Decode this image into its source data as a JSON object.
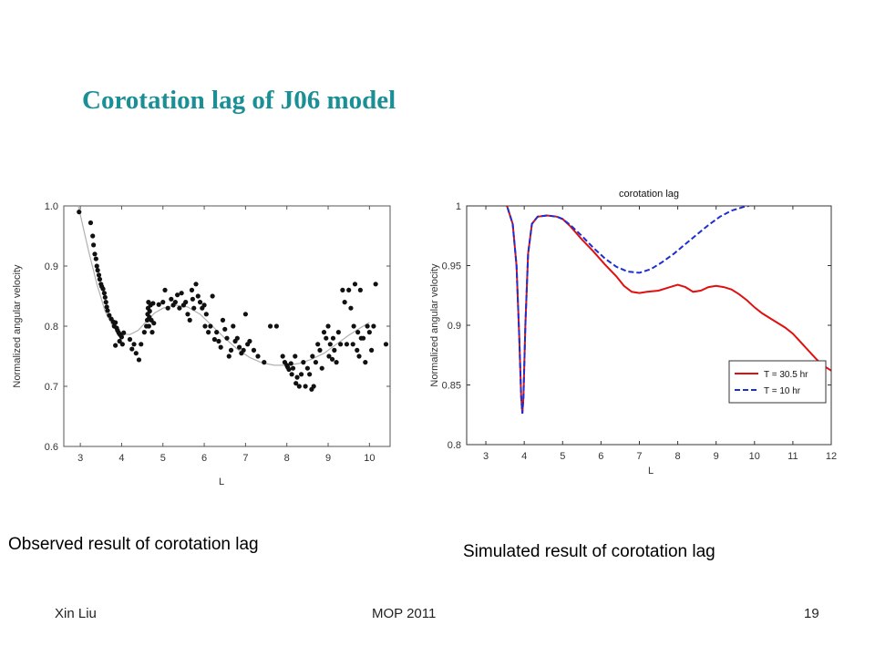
{
  "slide": {
    "title": "Corotation lag of J06 model",
    "caption_left": "Observed result of corotation lag",
    "caption_right": "Simulated result of corotation lag",
    "footer_left": "Xin Liu",
    "footer_center": "MOP 2011",
    "footer_right": "19",
    "title_color": "#1b8f96"
  },
  "chart_data": [
    {
      "type": "scatter",
      "title": "",
      "xlabel": "L",
      "ylabel": "Normalized angular velocity",
      "xlim": [
        2.6,
        10.5
      ],
      "ylim": [
        0.6,
        1.0
      ],
      "xticks": [
        3,
        4,
        5,
        6,
        7,
        8,
        9,
        10
      ],
      "yticks": [
        0.6,
        0.7,
        0.8,
        0.9,
        1.0
      ],
      "ytick_labels": [
        "0.6",
        "0.7",
        "0.8",
        "0.9",
        "1.0"
      ],
      "grid": false,
      "point_color": "#111111",
      "fit_color": "#b0b0b0",
      "points": [
        [
          2.97,
          0.99
        ],
        [
          3.25,
          0.972
        ],
        [
          3.3,
          0.95
        ],
        [
          3.32,
          0.935
        ],
        [
          3.35,
          0.92
        ],
        [
          3.38,
          0.912
        ],
        [
          3.4,
          0.9
        ],
        [
          3.42,
          0.893
        ],
        [
          3.45,
          0.885
        ],
        [
          3.47,
          0.878
        ],
        [
          3.5,
          0.87
        ],
        [
          3.52,
          0.866
        ],
        [
          3.55,
          0.862
        ],
        [
          3.58,
          0.855
        ],
        [
          3.6,
          0.848
        ],
        [
          3.62,
          0.84
        ],
        [
          3.64,
          0.832
        ],
        [
          3.66,
          0.826
        ],
        [
          3.7,
          0.818
        ],
        [
          3.75,
          0.812
        ],
        [
          3.8,
          0.807
        ],
        [
          3.82,
          0.8
        ],
        [
          3.85,
          0.806
        ],
        [
          3.88,
          0.797
        ],
        [
          3.9,
          0.793
        ],
        [
          3.93,
          0.789
        ],
        [
          3.96,
          0.786
        ],
        [
          4.0,
          0.782
        ],
        [
          4.05,
          0.789
        ],
        [
          3.85,
          0.768
        ],
        [
          3.95,
          0.775
        ],
        [
          4.02,
          0.77
        ],
        [
          4.2,
          0.778
        ],
        [
          4.25,
          0.762
        ],
        [
          4.3,
          0.77
        ],
        [
          4.35,
          0.755
        ],
        [
          4.42,
          0.744
        ],
        [
          4.47,
          0.77
        ],
        [
          4.55,
          0.79
        ],
        [
          4.6,
          0.8
        ],
        [
          4.62,
          0.81
        ],
        [
          4.63,
          0.82
        ],
        [
          4.64,
          0.83
        ],
        [
          4.65,
          0.84
        ],
        [
          4.66,
          0.8
        ],
        [
          4.67,
          0.815
        ],
        [
          4.68,
          0.825
        ],
        [
          4.7,
          0.835
        ],
        [
          4.72,
          0.81
        ],
        [
          4.74,
          0.79
        ],
        [
          4.76,
          0.838
        ],
        [
          4.78,
          0.805
        ],
        [
          4.9,
          0.836
        ],
        [
          5.0,
          0.84
        ],
        [
          5.05,
          0.86
        ],
        [
          5.12,
          0.83
        ],
        [
          5.2,
          0.845
        ],
        [
          5.25,
          0.835
        ],
        [
          5.3,
          0.84
        ],
        [
          5.35,
          0.852
        ],
        [
          5.4,
          0.83
        ],
        [
          5.45,
          0.855
        ],
        [
          5.5,
          0.835
        ],
        [
          5.55,
          0.84
        ],
        [
          5.6,
          0.82
        ],
        [
          5.65,
          0.81
        ],
        [
          5.7,
          0.86
        ],
        [
          5.72,
          0.845
        ],
        [
          5.75,
          0.83
        ],
        [
          5.8,
          0.87
        ],
        [
          5.85,
          0.85
        ],
        [
          5.9,
          0.84
        ],
        [
          5.95,
          0.83
        ],
        [
          6.0,
          0.835
        ],
        [
          6.02,
          0.8
        ],
        [
          6.05,
          0.82
        ],
        [
          6.1,
          0.79
        ],
        [
          6.15,
          0.8
        ],
        [
          6.2,
          0.85
        ],
        [
          6.25,
          0.778
        ],
        [
          6.3,
          0.79
        ],
        [
          6.35,
          0.775
        ],
        [
          6.4,
          0.765
        ],
        [
          6.45,
          0.81
        ],
        [
          6.5,
          0.795
        ],
        [
          6.55,
          0.78
        ],
        [
          6.6,
          0.75
        ],
        [
          6.65,
          0.76
        ],
        [
          6.7,
          0.8
        ],
        [
          6.75,
          0.775
        ],
        [
          6.8,
          0.78
        ],
        [
          6.85,
          0.765
        ],
        [
          6.9,
          0.755
        ],
        [
          6.95,
          0.76
        ],
        [
          7.0,
          0.82
        ],
        [
          7.05,
          0.77
        ],
        [
          7.1,
          0.775
        ],
        [
          7.2,
          0.76
        ],
        [
          7.3,
          0.75
        ],
        [
          7.45,
          0.74
        ],
        [
          7.6,
          0.8
        ],
        [
          7.75,
          0.8
        ],
        [
          7.9,
          0.75
        ],
        [
          7.95,
          0.74
        ],
        [
          8.0,
          0.735
        ],
        [
          8.02,
          0.732
        ],
        [
          8.05,
          0.728
        ],
        [
          8.1,
          0.738
        ],
        [
          8.12,
          0.72
        ],
        [
          8.15,
          0.73
        ],
        [
          8.2,
          0.75
        ],
        [
          8.22,
          0.705
        ],
        [
          8.25,
          0.715
        ],
        [
          8.3,
          0.7
        ],
        [
          8.35,
          0.72
        ],
        [
          8.4,
          0.74
        ],
        [
          8.45,
          0.7
        ],
        [
          8.5,
          0.73
        ],
        [
          8.55,
          0.72
        ],
        [
          8.6,
          0.695
        ],
        [
          8.62,
          0.75
        ],
        [
          8.65,
          0.7
        ],
        [
          8.7,
          0.74
        ],
        [
          8.75,
          0.77
        ],
        [
          8.8,
          0.76
        ],
        [
          8.85,
          0.73
        ],
        [
          8.9,
          0.79
        ],
        [
          8.95,
          0.78
        ],
        [
          9.0,
          0.8
        ],
        [
          9.02,
          0.75
        ],
        [
          9.05,
          0.77
        ],
        [
          9.1,
          0.745
        ],
        [
          9.12,
          0.78
        ],
        [
          9.15,
          0.76
        ],
        [
          9.2,
          0.74
        ],
        [
          9.25,
          0.79
        ],
        [
          9.3,
          0.77
        ],
        [
          9.35,
          0.86
        ],
        [
          9.4,
          0.84
        ],
        [
          9.45,
          0.77
        ],
        [
          9.5,
          0.86
        ],
        [
          9.55,
          0.83
        ],
        [
          9.6,
          0.77
        ],
        [
          9.62,
          0.8
        ],
        [
          9.65,
          0.87
        ],
        [
          9.7,
          0.76
        ],
        [
          9.72,
          0.79
        ],
        [
          9.75,
          0.75
        ],
        [
          9.78,
          0.86
        ],
        [
          9.8,
          0.78
        ],
        [
          9.85,
          0.78
        ],
        [
          9.9,
          0.74
        ],
        [
          9.95,
          0.8
        ],
        [
          10.0,
          0.79
        ],
        [
          10.05,
          0.76
        ],
        [
          10.1,
          0.8
        ],
        [
          10.15,
          0.87
        ],
        [
          10.4,
          0.77
        ]
      ],
      "fit_curve": [
        [
          2.95,
          1.0
        ],
        [
          3.05,
          0.97
        ],
        [
          3.2,
          0.925
        ],
        [
          3.4,
          0.87
        ],
        [
          3.6,
          0.825
        ],
        [
          3.8,
          0.798
        ],
        [
          4.0,
          0.787
        ],
        [
          4.2,
          0.786
        ],
        [
          4.4,
          0.793
        ],
        [
          4.6,
          0.808
        ],
        [
          4.8,
          0.822
        ],
        [
          5.0,
          0.83
        ],
        [
          5.3,
          0.835
        ],
        [
          5.6,
          0.832
        ],
        [
          5.9,
          0.82
        ],
        [
          6.2,
          0.8
        ],
        [
          6.5,
          0.78
        ],
        [
          6.8,
          0.762
        ],
        [
          7.1,
          0.748
        ],
        [
          7.4,
          0.739
        ],
        [
          7.7,
          0.735
        ],
        [
          8.0,
          0.735
        ],
        [
          8.3,
          0.738
        ],
        [
          8.6,
          0.745
        ],
        [
          8.9,
          0.755
        ],
        [
          9.2,
          0.77
        ],
        [
          9.5,
          0.785
        ],
        [
          9.8,
          0.798
        ],
        [
          10.0,
          0.806
        ]
      ]
    },
    {
      "type": "line",
      "title": "corotation lag",
      "xlabel": "L",
      "ylabel": "Normalized angular velocity",
      "xlim": [
        2.5,
        12
      ],
      "ylim": [
        0.8,
        1.0
      ],
      "xticks": [
        3,
        4,
        5,
        6,
        7,
        8,
        9,
        10,
        11,
        12
      ],
      "yticks": [
        0.8,
        0.85,
        0.9,
        0.95,
        1.0
      ],
      "ytick_labels": [
        "0.8",
        "0.85",
        "0.9",
        "0.95",
        "1"
      ],
      "grid": false,
      "legend_position": "bottom-right",
      "series": [
        {
          "name": "T = 30.5 hr",
          "color": "#e01010",
          "dash": "solid",
          "points": [
            [
              3.4,
              1.002
            ],
            [
              3.55,
              1.0
            ],
            [
              3.7,
              0.985
            ],
            [
              3.8,
              0.95
            ],
            [
              3.87,
              0.89
            ],
            [
              3.92,
              0.84
            ],
            [
              3.95,
              0.826
            ],
            [
              3.98,
              0.84
            ],
            [
              4.03,
              0.9
            ],
            [
              4.1,
              0.96
            ],
            [
              4.2,
              0.985
            ],
            [
              4.35,
              0.991
            ],
            [
              4.6,
              0.992
            ],
            [
              4.85,
              0.991
            ],
            [
              5.0,
              0.989
            ],
            [
              5.2,
              0.983
            ],
            [
              5.5,
              0.972
            ],
            [
              5.8,
              0.962
            ],
            [
              6.1,
              0.951
            ],
            [
              6.4,
              0.941
            ],
            [
              6.6,
              0.933
            ],
            [
              6.8,
              0.928
            ],
            [
              7.0,
              0.927
            ],
            [
              7.2,
              0.928
            ],
            [
              7.5,
              0.929
            ],
            [
              7.8,
              0.932
            ],
            [
              8.0,
              0.934
            ],
            [
              8.2,
              0.932
            ],
            [
              8.4,
              0.928
            ],
            [
              8.6,
              0.929
            ],
            [
              8.8,
              0.932
            ],
            [
              9.0,
              0.933
            ],
            [
              9.2,
              0.932
            ],
            [
              9.4,
              0.93
            ],
            [
              9.6,
              0.926
            ],
            [
              9.8,
              0.921
            ],
            [
              10.0,
              0.915
            ],
            [
              10.2,
              0.91
            ],
            [
              10.4,
              0.906
            ],
            [
              10.6,
              0.902
            ],
            [
              10.8,
              0.898
            ],
            [
              11.0,
              0.893
            ],
            [
              11.2,
              0.886
            ],
            [
              11.4,
              0.879
            ],
            [
              11.6,
              0.872
            ],
            [
              11.8,
              0.866
            ],
            [
              12.0,
              0.862
            ]
          ]
        },
        {
          "name": "T = 10 hr",
          "color": "#1c2fd0",
          "dash": "dashed",
          "points": [
            [
              3.4,
              1.002
            ],
            [
              3.55,
              1.0
            ],
            [
              3.7,
              0.985
            ],
            [
              3.8,
              0.95
            ],
            [
              3.87,
              0.89
            ],
            [
              3.92,
              0.84
            ],
            [
              3.95,
              0.826
            ],
            [
              3.98,
              0.84
            ],
            [
              4.03,
              0.9
            ],
            [
              4.1,
              0.96
            ],
            [
              4.2,
              0.985
            ],
            [
              4.35,
              0.991
            ],
            [
              4.6,
              0.992
            ],
            [
              4.85,
              0.991
            ],
            [
              5.0,
              0.989
            ],
            [
              5.2,
              0.984
            ],
            [
              5.5,
              0.975
            ],
            [
              5.8,
              0.965
            ],
            [
              6.1,
              0.956
            ],
            [
              6.4,
              0.949
            ],
            [
              6.7,
              0.945
            ],
            [
              7.0,
              0.944
            ],
            [
              7.3,
              0.947
            ],
            [
              7.6,
              0.953
            ],
            [
              7.9,
              0.96
            ],
            [
              8.2,
              0.968
            ],
            [
              8.5,
              0.976
            ],
            [
              8.8,
              0.984
            ],
            [
              9.1,
              0.991
            ],
            [
              9.4,
              0.996
            ],
            [
              9.7,
              0.999
            ],
            [
              9.85,
              1.0
            ]
          ]
        }
      ]
    }
  ]
}
